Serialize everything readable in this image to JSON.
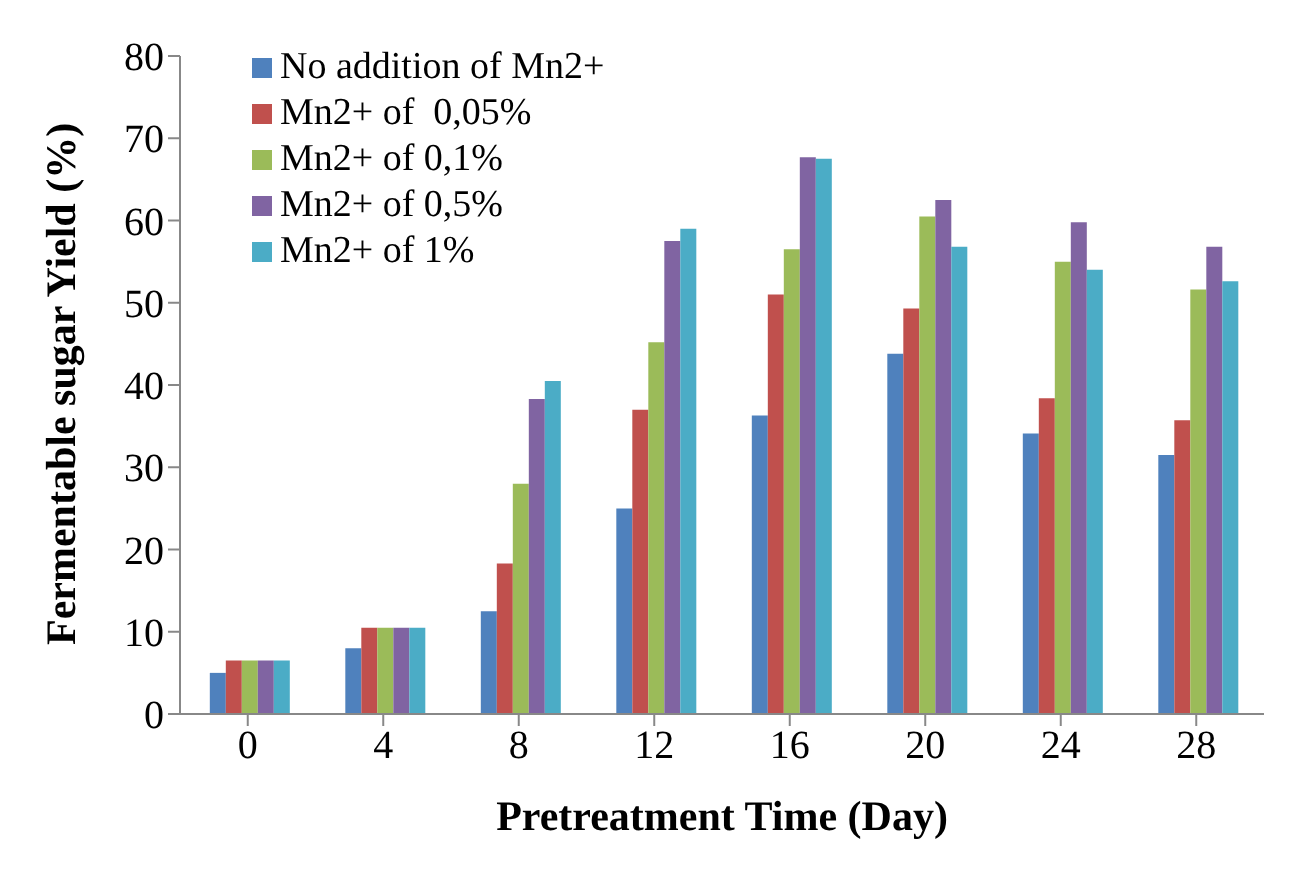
{
  "chart_data": {
    "type": "bar",
    "xlabel": "Pretreatment Time (Day)",
    "ylabel": "Fermentable sugar Yield (%)",
    "categories": [
      "0",
      "4",
      "8",
      "12",
      "16",
      "20",
      "24",
      "28"
    ],
    "series": [
      {
        "name": "No addition of Mn2+",
        "color": "#4f81bd",
        "values": [
          5,
          8,
          12.5,
          25,
          36.3,
          43.8,
          34.1,
          31.5
        ]
      },
      {
        "name": "Mn2+ of  0,05%",
        "color": "#c0504d",
        "values": [
          6.5,
          10.5,
          18.3,
          37,
          51,
          49.3,
          38.4,
          35.7
        ]
      },
      {
        "name": "Mn2+ of 0,1%",
        "color": "#9bbb59",
        "values": [
          6.5,
          10.5,
          28,
          45.2,
          56.5,
          60.5,
          55,
          51.6
        ]
      },
      {
        "name": "Mn2+ of 0,5%",
        "color": "#8064a2",
        "values": [
          6.5,
          10.5,
          38.3,
          57.5,
          67.7,
          62.5,
          59.8,
          56.8
        ]
      },
      {
        "name": "Mn2+ of 1%",
        "color": "#4bacc6",
        "values": [
          6.5,
          10.5,
          40.5,
          59,
          67.5,
          56.8,
          54,
          52.6
        ]
      }
    ],
    "ylim": [
      0,
      80
    ],
    "yticks": [
      0,
      10,
      20,
      30,
      40,
      50,
      60,
      70,
      80
    ],
    "grid": false,
    "legend": "top left"
  }
}
